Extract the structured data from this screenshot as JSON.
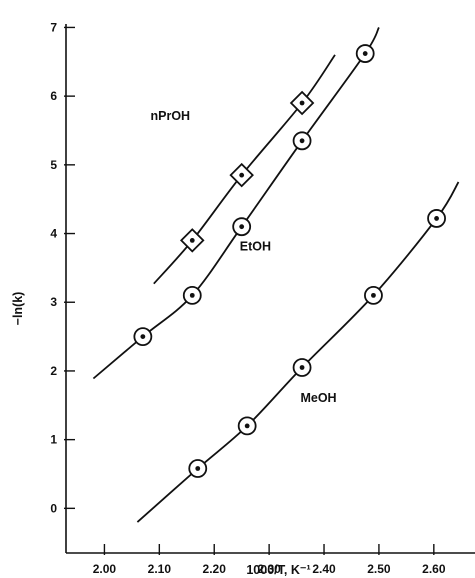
{
  "chart_data": {
    "type": "scatter",
    "xlabel": "1000/T, K⁻¹",
    "ylabel": "−ln(k)",
    "xlim": [
      1.93,
      2.675
    ],
    "ylim": [
      -0.65,
      7.05
    ],
    "x_ticks": [
      2.0,
      2.1,
      2.2,
      2.3,
      2.4,
      2.5,
      2.6
    ],
    "x_tick_labels": [
      "2.00",
      "2.10",
      "2.20",
      "2.30",
      "2.40",
      "2.50",
      "2.60"
    ],
    "y_ticks": [
      0,
      1,
      2,
      3,
      4,
      5,
      6,
      7
    ],
    "y_tick_labels": [
      "0",
      "1",
      "2",
      "3",
      "4",
      "5",
      "6",
      "7"
    ],
    "series": [
      {
        "name": "nPrOH",
        "marker": "diamond",
        "x": [
          2.16,
          2.25,
          2.36
        ],
        "y": [
          3.9,
          4.85,
          5.9
        ],
        "fit_x": [
          2.09,
          2.16,
          2.25,
          2.36,
          2.42
        ],
        "fit_y": [
          3.27,
          3.9,
          4.85,
          5.9,
          6.6
        ],
        "label_at": [
          2.12,
          5.65
        ]
      },
      {
        "name": "EtOH",
        "marker": "circle",
        "x": [
          2.07,
          2.16,
          2.25,
          2.36,
          2.475
        ],
        "y": [
          2.5,
          3.1,
          4.1,
          5.35,
          6.62
        ],
        "fit_x": [
          1.98,
          2.07,
          2.16,
          2.25,
          2.36,
          2.475,
          2.5
        ],
        "fit_y": [
          1.89,
          2.5,
          3.1,
          4.1,
          5.35,
          6.62,
          7.0
        ],
        "label_at": [
          2.275,
          3.75
        ]
      },
      {
        "name": "MeOH",
        "marker": "circle",
        "x": [
          2.17,
          2.26,
          2.36,
          2.49,
          2.605
        ],
        "y": [
          0.58,
          1.2,
          2.05,
          3.1,
          4.22
        ],
        "fit_x": [
          2.06,
          2.17,
          2.26,
          2.36,
          2.49,
          2.605,
          2.645
        ],
        "fit_y": [
          -0.2,
          0.58,
          1.2,
          2.05,
          3.1,
          4.22,
          4.75
        ],
        "label_at": [
          2.39,
          1.55
        ]
      }
    ]
  }
}
